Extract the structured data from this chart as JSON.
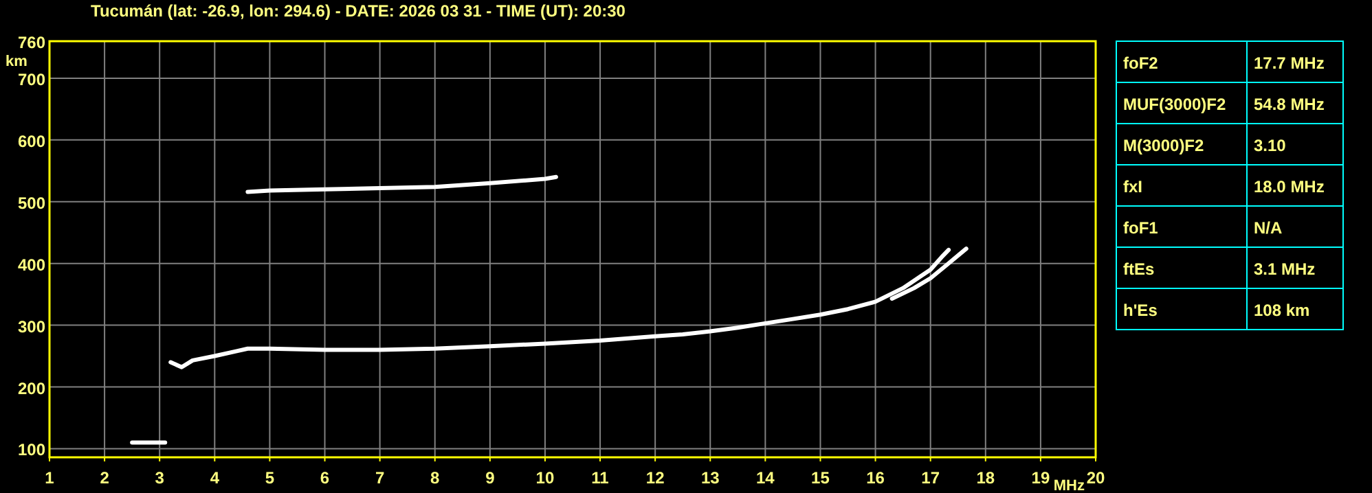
{
  "chart_data": [
    {
      "type": "line",
      "title": "Tucumán (lat: -26.9, lon: 294.6) - DATE: 2026 03 31 - TIME (UT): 20:30",
      "xlabel": "MHz",
      "ylabel": "km",
      "xlim": [
        1,
        20
      ],
      "xticks": [
        1,
        2,
        3,
        4,
        5,
        6,
        7,
        8,
        9,
        10,
        11,
        12,
        13,
        14,
        15,
        16,
        17,
        18,
        19,
        20
      ],
      "ylim": [
        86,
        760
      ],
      "yticks": [
        100,
        200,
        300,
        400,
        500,
        600,
        700,
        760
      ],
      "grid": true,
      "marker": "none",
      "line_style": "solid",
      "series": [
        {
          "color": "#ffffff",
          "x": [
            3.2,
            3.4,
            3.6,
            4,
            4.4,
            4.6,
            5,
            6,
            7,
            8,
            9,
            10,
            11,
            12,
            12.5,
            13,
            13.5,
            14,
            14.5,
            15,
            15.5,
            16,
            16.5,
            16.8,
            17,
            17.2,
            17.33
          ],
          "values": [
            240,
            232,
            243,
            250,
            258,
            262,
            262,
            260,
            260,
            262,
            266,
            270,
            275,
            282,
            285,
            290,
            296,
            303,
            310,
            317,
            326,
            338,
            360,
            378,
            390,
            410,
            422
          ]
        },
        {
          "color": "#ffffff",
          "x": [
            16.3,
            16.7,
            17,
            17.3,
            17.65
          ],
          "values": [
            343,
            360,
            376,
            398,
            424
          ]
        },
        {
          "color": "#ffffff",
          "x": [
            4.6,
            5,
            6,
            7,
            8,
            9,
            10,
            10.2
          ],
          "values": [
            516,
            518,
            520,
            522,
            524,
            530,
            537,
            540
          ]
        },
        {
          "color": "#ffffff",
          "x": [
            2.5,
            2.8,
            3.1
          ],
          "values": [
            110,
            110,
            110
          ]
        }
      ]
    },
    {
      "type": "other",
      "categories": [
        "foF2",
        "MUF(3000)F2",
        "M(3000)F2",
        "fxI",
        "foF1",
        "ftEs",
        "h'Es"
      ],
      "annotations": [
        "17.7 MHz",
        "54.8 MHz",
        "3.10",
        "18.0 MHz",
        "N/A",
        "3.1 MHz",
        "108 km"
      ]
    }
  ]
}
